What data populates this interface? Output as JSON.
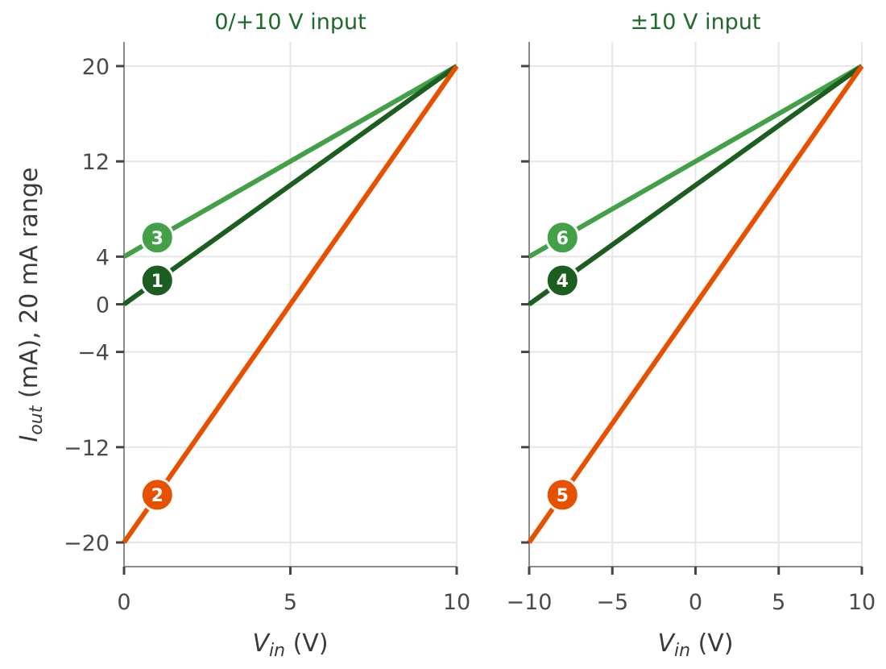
{
  "chart_data": [
    {
      "type": "line",
      "title": "0/+10 V input",
      "xlabel": {
        "main": "V",
        "sub": "in",
        "unit": " (V)"
      },
      "ylabel": {
        "main": "I",
        "sub": "out",
        "rest": " (mA), 20 mA range"
      },
      "xlim": [
        0,
        10
      ],
      "ylim": [
        -22,
        22
      ],
      "xticks": [
        0,
        5,
        10
      ],
      "xtick_labels": [
        "0",
        "5",
        "10"
      ],
      "yticks": [
        20,
        12,
        4,
        0,
        -4,
        -12,
        -20
      ],
      "ytick_labels": [
        "20",
        "12",
        "4",
        "0",
        "−4",
        "−12",
        "−20"
      ],
      "grid": true,
      "series": [
        {
          "marker": "3",
          "color": "#43a047",
          "x": [
            0,
            10
          ],
          "y": [
            4,
            20
          ],
          "marker_at": [
            1,
            5.6
          ]
        },
        {
          "marker": "1",
          "color": "#1b5e20",
          "x": [
            0,
            10
          ],
          "y": [
            0,
            20
          ],
          "marker_at": [
            1,
            2
          ]
        },
        {
          "marker": "2",
          "color": "#e65100",
          "x": [
            0,
            10
          ],
          "y": [
            -20,
            20
          ],
          "marker_at": [
            1,
            -16
          ]
        }
      ]
    },
    {
      "type": "line",
      "title": "±10 V input",
      "xlabel": {
        "main": "V",
        "sub": "in",
        "unit": " (V)"
      },
      "xlim": [
        -10,
        10
      ],
      "ylim": [
        -22,
        22
      ],
      "xticks": [
        -10,
        -5,
        0,
        5,
        10
      ],
      "xtick_labels": [
        "−10",
        "−5",
        "0",
        "5",
        "10"
      ],
      "yticks": [
        20,
        12,
        4,
        0,
        -4,
        -12,
        -20
      ],
      "grid": true,
      "series": [
        {
          "marker": "6",
          "color": "#43a047",
          "x": [
            -10,
            10
          ],
          "y": [
            4,
            20
          ],
          "marker_at": [
            -8,
            5.6
          ]
        },
        {
          "marker": "4",
          "color": "#1b5e20",
          "x": [
            -10,
            10
          ],
          "y": [
            0,
            20
          ],
          "marker_at": [
            -8,
            2
          ]
        },
        {
          "marker": "5",
          "color": "#e65100",
          "x": [
            -10,
            10
          ],
          "y": [
            -20,
            20
          ],
          "marker_at": [
            -8,
            -16
          ]
        }
      ]
    }
  ]
}
